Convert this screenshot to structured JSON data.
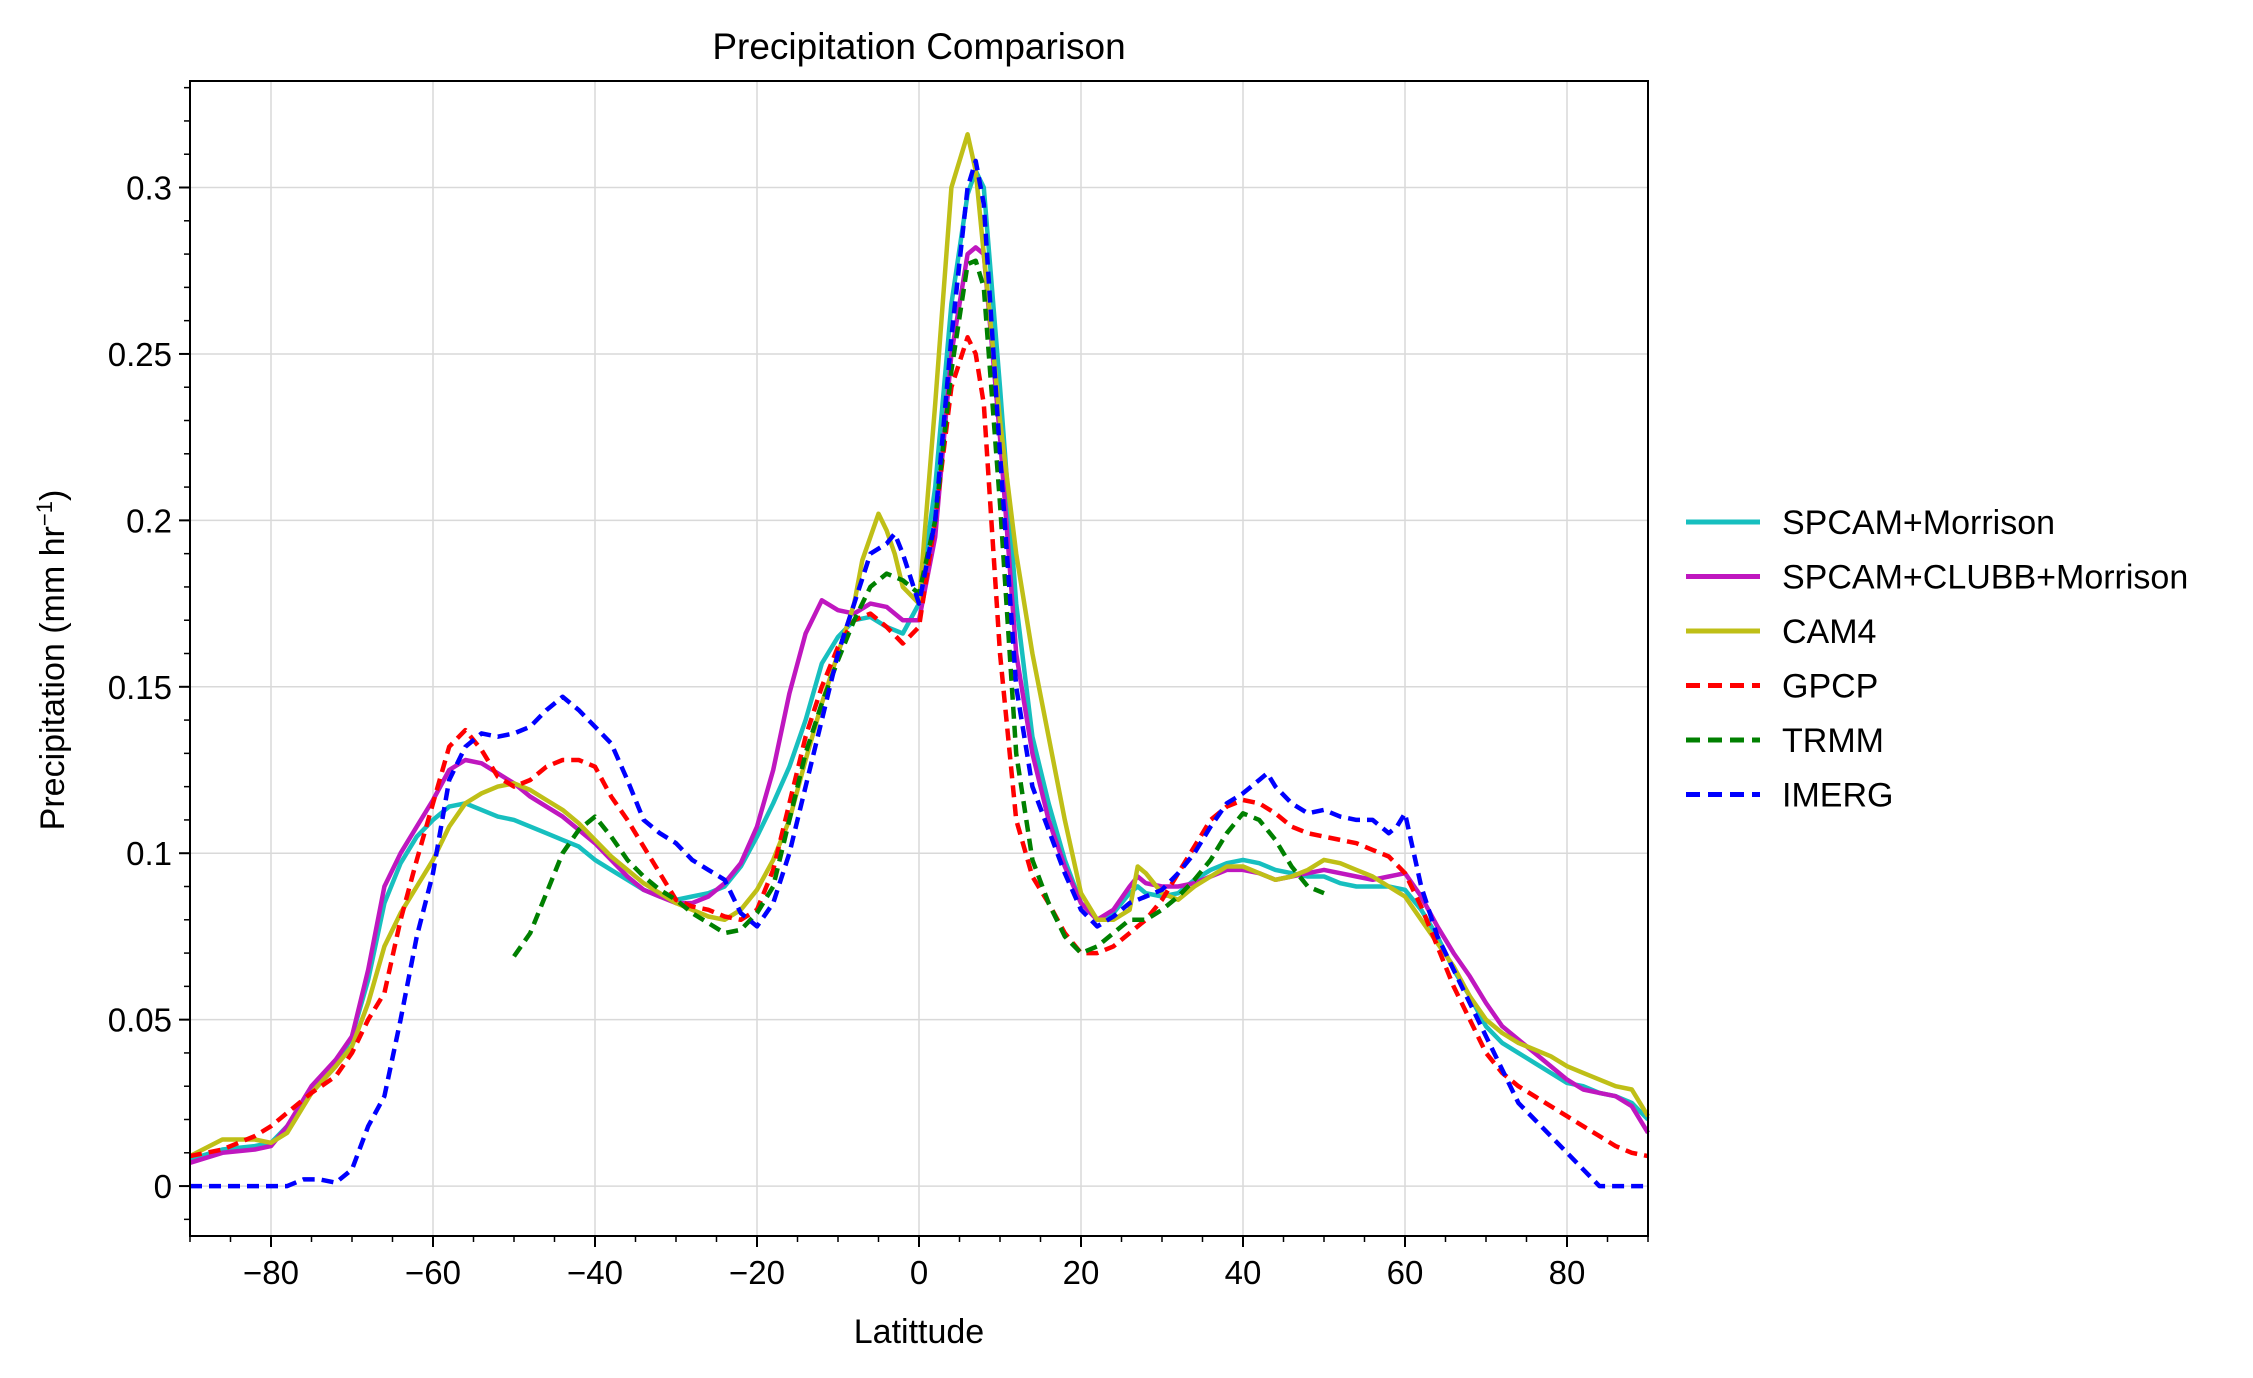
{
  "chart_data": {
    "type": "line",
    "title": "Precipitation Comparison",
    "xlabel": "Latittude",
    "ylabel": "Precipitation (mm hr",
    "ylabel_sup": "−1",
    "ylabel_close": ")",
    "xlim": [
      -90,
      90
    ],
    "ylim": [
      -0.015,
      0.332
    ],
    "xticks": [
      -80,
      -60,
      -40,
      -20,
      0,
      20,
      40,
      60,
      80
    ],
    "xtick_labels": [
      "−80",
      "−60",
      "−40",
      "−20",
      "0",
      "20",
      "40",
      "60",
      "80"
    ],
    "yticks": [
      0,
      0.05,
      0.1,
      0.15,
      0.2,
      0.25,
      0.3
    ],
    "ytick_labels": [
      "0",
      "0.05",
      "0.1",
      "0.15",
      "0.2",
      "0.25",
      "0.3"
    ],
    "grid": true,
    "legend_position": "right",
    "series": [
      {
        "name": "SPCAM+Morrison",
        "color": "#17bfbf",
        "style": "solid",
        "x": [
          -90,
          -86,
          -82,
          -80,
          -78,
          -75,
          -72,
          -70,
          -68,
          -66,
          -64,
          -62,
          -60,
          -58,
          -56,
          -54,
          -52,
          -50,
          -48,
          -46,
          -44,
          -42,
          -40,
          -38,
          -36,
          -34,
          -32,
          -30,
          -28,
          -26,
          -24,
          -22,
          -20,
          -18,
          -16,
          -14,
          -12,
          -10,
          -8,
          -6,
          -4,
          -2,
          0,
          2,
          4,
          6,
          7,
          8,
          10,
          12,
          14,
          16,
          18,
          20,
          22,
          24,
          26,
          27,
          28,
          30,
          32,
          34,
          36,
          38,
          40,
          42,
          44,
          46,
          48,
          50,
          52,
          54,
          56,
          58,
          60,
          62,
          64,
          66,
          68,
          70,
          72,
          74,
          76,
          78,
          80,
          82,
          84,
          86,
          88,
          90
        ],
        "y": [
          0.008,
          0.011,
          0.012,
          0.013,
          0.018,
          0.028,
          0.036,
          0.045,
          0.062,
          0.085,
          0.097,
          0.105,
          0.11,
          0.114,
          0.115,
          0.113,
          0.111,
          0.11,
          0.108,
          0.106,
          0.104,
          0.102,
          0.098,
          0.095,
          0.092,
          0.089,
          0.087,
          0.086,
          0.087,
          0.088,
          0.09,
          0.096,
          0.105,
          0.115,
          0.126,
          0.14,
          0.157,
          0.165,
          0.17,
          0.171,
          0.168,
          0.166,
          0.175,
          0.21,
          0.265,
          0.298,
          0.305,
          0.3,
          0.24,
          0.175,
          0.135,
          0.115,
          0.098,
          0.085,
          0.08,
          0.082,
          0.088,
          0.09,
          0.088,
          0.087,
          0.088,
          0.092,
          0.095,
          0.097,
          0.098,
          0.097,
          0.095,
          0.094,
          0.093,
          0.093,
          0.091,
          0.09,
          0.09,
          0.09,
          0.089,
          0.083,
          0.075,
          0.065,
          0.057,
          0.048,
          0.043,
          0.04,
          0.037,
          0.034,
          0.031,
          0.03,
          0.028,
          0.027,
          0.025,
          0.02
        ]
      },
      {
        "name": "SPCAM+CLUBB+Morrison",
        "color": "#bf17bf",
        "style": "solid",
        "x": [
          -90,
          -86,
          -82,
          -80,
          -78,
          -75,
          -72,
          -70,
          -68,
          -66,
          -64,
          -62,
          -60,
          -58,
          -56,
          -54,
          -52,
          -50,
          -48,
          -46,
          -44,
          -42,
          -40,
          -38,
          -36,
          -34,
          -32,
          -30,
          -28,
          -26,
          -24,
          -22,
          -20,
          -18,
          -16,
          -14,
          -12,
          -10,
          -8,
          -6,
          -4,
          -2,
          0,
          2,
          4,
          6,
          7,
          8,
          10,
          12,
          14,
          16,
          18,
          20,
          22,
          24,
          26,
          27,
          28,
          30,
          32,
          34,
          36,
          38,
          40,
          42,
          44,
          46,
          48,
          50,
          52,
          54,
          56,
          58,
          60,
          62,
          64,
          66,
          68,
          70,
          72,
          74,
          76,
          78,
          80,
          82,
          84,
          86,
          88,
          90
        ],
        "y": [
          0.007,
          0.01,
          0.011,
          0.012,
          0.018,
          0.03,
          0.038,
          0.045,
          0.065,
          0.09,
          0.1,
          0.108,
          0.116,
          0.125,
          0.128,
          0.127,
          0.124,
          0.121,
          0.117,
          0.114,
          0.111,
          0.107,
          0.103,
          0.098,
          0.093,
          0.089,
          0.087,
          0.085,
          0.085,
          0.087,
          0.091,
          0.097,
          0.108,
          0.125,
          0.148,
          0.166,
          0.176,
          0.173,
          0.172,
          0.175,
          0.174,
          0.17,
          0.17,
          0.195,
          0.25,
          0.28,
          0.282,
          0.28,
          0.225,
          0.16,
          0.13,
          0.11,
          0.096,
          0.085,
          0.08,
          0.083,
          0.09,
          0.093,
          0.091,
          0.09,
          0.09,
          0.091,
          0.093,
          0.095,
          0.095,
          0.094,
          0.092,
          0.093,
          0.094,
          0.095,
          0.094,
          0.093,
          0.092,
          0.093,
          0.094,
          0.087,
          0.078,
          0.07,
          0.063,
          0.055,
          0.048,
          0.044,
          0.04,
          0.036,
          0.032,
          0.029,
          0.028,
          0.027,
          0.024,
          0.016
        ]
      },
      {
        "name": "CAM4",
        "color": "#bfbf17",
        "style": "solid",
        "x": [
          -90,
          -86,
          -82,
          -80,
          -78,
          -75,
          -72,
          -70,
          -68,
          -66,
          -64,
          -62,
          -60,
          -58,
          -56,
          -54,
          -52,
          -50,
          -48,
          -46,
          -44,
          -42,
          -40,
          -38,
          -36,
          -34,
          -32,
          -30,
          -28,
          -26,
          -24,
          -22,
          -20,
          -18,
          -16,
          -14,
          -12,
          -10,
          -8,
          -7,
          -6,
          -5,
          -4,
          -3,
          -2,
          0,
          2,
          4,
          6,
          7,
          8,
          10,
          12,
          14,
          16,
          18,
          20,
          22,
          24,
          26,
          27,
          28,
          30,
          32,
          34,
          36,
          38,
          40,
          42,
          44,
          46,
          48,
          50,
          52,
          54,
          56,
          58,
          60,
          62,
          64,
          66,
          68,
          70,
          72,
          74,
          76,
          78,
          80,
          82,
          84,
          86,
          88,
          90
        ],
        "y": [
          0.009,
          0.014,
          0.014,
          0.013,
          0.016,
          0.028,
          0.036,
          0.042,
          0.055,
          0.072,
          0.082,
          0.09,
          0.098,
          0.108,
          0.115,
          0.118,
          0.12,
          0.121,
          0.119,
          0.116,
          0.113,
          0.109,
          0.104,
          0.099,
          0.095,
          0.091,
          0.088,
          0.085,
          0.083,
          0.081,
          0.08,
          0.083,
          0.089,
          0.098,
          0.11,
          0.128,
          0.145,
          0.16,
          0.175,
          0.188,
          0.195,
          0.202,
          0.197,
          0.19,
          0.18,
          0.175,
          0.235,
          0.3,
          0.316,
          0.305,
          0.28,
          0.23,
          0.19,
          0.16,
          0.135,
          0.11,
          0.088,
          0.08,
          0.08,
          0.083,
          0.096,
          0.094,
          0.088,
          0.086,
          0.09,
          0.093,
          0.096,
          0.096,
          0.094,
          0.092,
          0.093,
          0.095,
          0.098,
          0.097,
          0.095,
          0.093,
          0.09,
          0.087,
          0.08,
          0.073,
          0.066,
          0.057,
          0.05,
          0.046,
          0.043,
          0.041,
          0.039,
          0.036,
          0.034,
          0.032,
          0.03,
          0.029,
          0.021
        ]
      },
      {
        "name": "GPCP",
        "color": "#ff0000",
        "style": "dashed",
        "x": [
          -90,
          -86,
          -82,
          -80,
          -78,
          -75,
          -72,
          -70,
          -68,
          -66,
          -64,
          -62,
          -60,
          -58,
          -56,
          -54,
          -52,
          -50,
          -48,
          -46,
          -44,
          -42,
          -40,
          -38,
          -36,
          -34,
          -32,
          -30,
          -28,
          -26,
          -24,
          -22,
          -20,
          -18,
          -16,
          -14,
          -12,
          -10,
          -8,
          -6,
          -4,
          -2,
          0,
          2,
          4,
          6,
          7,
          8,
          10,
          12,
          14,
          16,
          18,
          20,
          22,
          24,
          26,
          27,
          28,
          30,
          32,
          34,
          36,
          38,
          40,
          42,
          44,
          46,
          48,
          50,
          52,
          54,
          56,
          58,
          60,
          62,
          64,
          66,
          68,
          70,
          72,
          74,
          76,
          78,
          80,
          82,
          84,
          86,
          88,
          90
        ],
        "y": [
          0.009,
          0.011,
          0.015,
          0.018,
          0.022,
          0.028,
          0.033,
          0.04,
          0.05,
          0.058,
          0.08,
          0.098,
          0.115,
          0.132,
          0.137,
          0.131,
          0.123,
          0.12,
          0.122,
          0.126,
          0.128,
          0.128,
          0.126,
          0.117,
          0.11,
          0.102,
          0.094,
          0.086,
          0.084,
          0.083,
          0.081,
          0.08,
          0.083,
          0.095,
          0.115,
          0.135,
          0.15,
          0.162,
          0.17,
          0.172,
          0.168,
          0.163,
          0.168,
          0.2,
          0.24,
          0.255,
          0.25,
          0.235,
          0.16,
          0.11,
          0.093,
          0.085,
          0.076,
          0.07,
          0.07,
          0.072,
          0.076,
          0.078,
          0.08,
          0.086,
          0.094,
          0.102,
          0.11,
          0.114,
          0.116,
          0.115,
          0.112,
          0.108,
          0.106,
          0.105,
          0.104,
          0.103,
          0.101,
          0.099,
          0.094,
          0.084,
          0.072,
          0.06,
          0.05,
          0.04,
          0.034,
          0.03,
          0.027,
          0.024,
          0.021,
          0.018,
          0.015,
          0.012,
          0.01,
          0.009
        ]
      },
      {
        "name": "TRMM",
        "color": "#008000",
        "style": "dashed",
        "x": [
          -50,
          -48,
          -46,
          -44,
          -42,
          -40,
          -38,
          -36,
          -34,
          -32,
          -30,
          -28,
          -26,
          -24,
          -22,
          -20,
          -18,
          -16,
          -14,
          -12,
          -10,
          -8,
          -6,
          -4,
          -2,
          0,
          2,
          4,
          6,
          7,
          8,
          10,
          12,
          14,
          16,
          18,
          20,
          22,
          24,
          26,
          28,
          30,
          32,
          34,
          36,
          38,
          40,
          42,
          44,
          46,
          48,
          50
        ],
        "y": [
          0.069,
          0.076,
          0.088,
          0.1,
          0.107,
          0.111,
          0.105,
          0.098,
          0.093,
          0.089,
          0.086,
          0.082,
          0.079,
          0.076,
          0.077,
          0.082,
          0.09,
          0.11,
          0.13,
          0.145,
          0.158,
          0.17,
          0.18,
          0.184,
          0.182,
          0.178,
          0.2,
          0.245,
          0.277,
          0.278,
          0.27,
          0.205,
          0.13,
          0.098,
          0.085,
          0.075,
          0.07,
          0.072,
          0.076,
          0.08,
          0.08,
          0.083,
          0.087,
          0.092,
          0.098,
          0.106,
          0.112,
          0.11,
          0.104,
          0.096,
          0.09,
          0.088
        ]
      },
      {
        "name": "IMERG",
        "color": "#0000ff",
        "style": "dashed",
        "x": [
          -90,
          -86,
          -82,
          -80,
          -78,
          -76,
          -74,
          -72,
          -70,
          -68,
          -66,
          -64,
          -62,
          -60,
          -58,
          -56,
          -54,
          -52,
          -50,
          -48,
          -46,
          -44,
          -42,
          -40,
          -38,
          -36,
          -34,
          -32,
          -30,
          -28,
          -26,
          -24,
          -22,
          -20,
          -18,
          -16,
          -14,
          -12,
          -10,
          -8,
          -6,
          -4,
          -3,
          -2,
          0,
          2,
          4,
          6,
          7,
          8,
          10,
          12,
          14,
          16,
          18,
          20,
          22,
          24,
          26,
          28,
          30,
          32,
          34,
          36,
          38,
          40,
          42,
          43,
          44,
          46,
          48,
          50,
          52,
          54,
          56,
          58,
          59,
          60,
          62,
          64,
          66,
          68,
          70,
          72,
          74,
          76,
          78,
          80,
          82,
          84,
          86,
          88,
          90
        ],
        "y": [
          0,
          0,
          0,
          0,
          0,
          0.002,
          0.002,
          0.001,
          0.005,
          0.018,
          0.027,
          0.05,
          0.075,
          0.094,
          0.122,
          0.132,
          0.136,
          0.135,
          0.136,
          0.138,
          0.143,
          0.147,
          0.143,
          0.138,
          0.133,
          0.122,
          0.11,
          0.106,
          0.103,
          0.098,
          0.095,
          0.092,
          0.082,
          0.078,
          0.085,
          0.1,
          0.12,
          0.14,
          0.16,
          0.175,
          0.19,
          0.193,
          0.196,
          0.19,
          0.175,
          0.2,
          0.255,
          0.3,
          0.308,
          0.295,
          0.22,
          0.15,
          0.12,
          0.107,
          0.094,
          0.083,
          0.078,
          0.081,
          0.085,
          0.087,
          0.089,
          0.094,
          0.1,
          0.108,
          0.115,
          0.118,
          0.122,
          0.124,
          0.12,
          0.115,
          0.112,
          0.113,
          0.111,
          0.11,
          0.11,
          0.106,
          0.108,
          0.112,
          0.09,
          0.075,
          0.065,
          0.055,
          0.045,
          0.035,
          0.025,
          0.02,
          0.015,
          0.01,
          0.005,
          0,
          0,
          0,
          0
        ]
      }
    ]
  }
}
